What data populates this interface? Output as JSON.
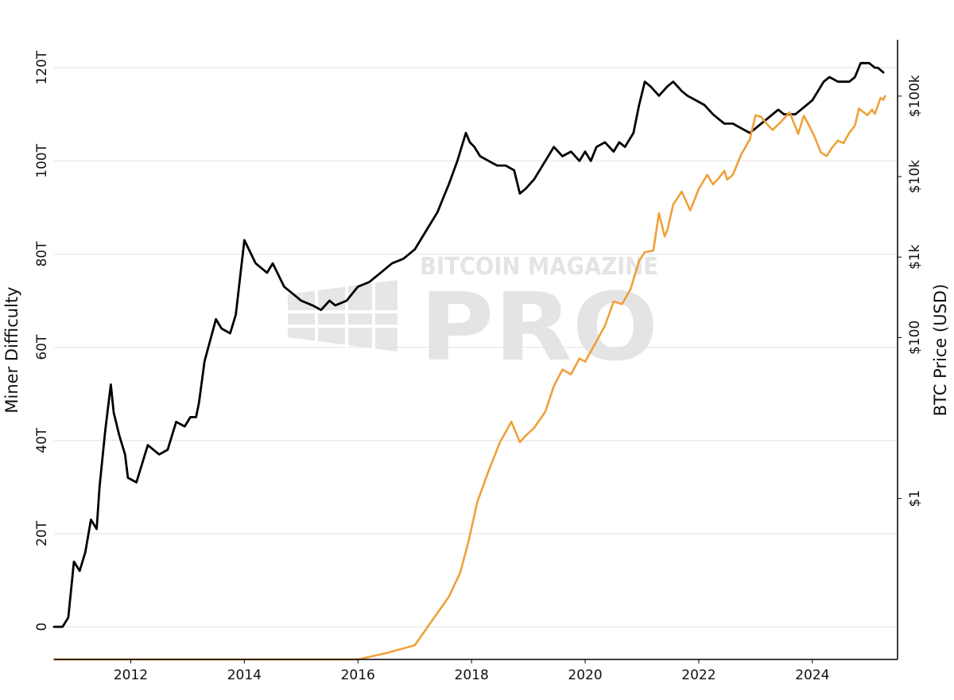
{
  "chart_data": {
    "type": "line",
    "title": "",
    "xlabel": "",
    "ylabel": "Miner Difficulty",
    "y2label": "BTC Price (USD)",
    "xlim": [
      2010.65,
      2025.5
    ],
    "ylim": [
      -7,
      126
    ],
    "y2scale": "log",
    "y2lim_log10": [
      -2.0,
      5.7
    ],
    "x_ticks": [
      {
        "value": 2012,
        "label": "2012"
      },
      {
        "value": 2014,
        "label": "2014"
      },
      {
        "value": 2016,
        "label": "2016"
      },
      {
        "value": 2018,
        "label": "2018"
      },
      {
        "value": 2020,
        "label": "2020"
      },
      {
        "value": 2022,
        "label": "2022"
      },
      {
        "value": 2024,
        "label": "2024"
      }
    ],
    "y_ticks": [
      {
        "value": 0,
        "label": "0"
      },
      {
        "value": 20,
        "label": "20T"
      },
      {
        "value": 40,
        "label": "40T"
      },
      {
        "value": 60,
        "label": "60T"
      },
      {
        "value": 80,
        "label": "80T"
      },
      {
        "value": 100,
        "label": "100T"
      },
      {
        "value": 120,
        "label": "120T"
      }
    ],
    "y2_ticks": [
      {
        "value": 1,
        "label": "$1"
      },
      {
        "value": 100,
        "label": "$100"
      },
      {
        "value": 1000,
        "label": "$1k"
      },
      {
        "value": 10000,
        "label": "$10k"
      },
      {
        "value": 100000,
        "label": "$100k"
      }
    ],
    "grid": true,
    "series": [
      {
        "name": "Miner Difficulty",
        "axis": "left",
        "unit": "T",
        "color": "#000000",
        "x": [
          2010.65,
          2010.8,
          2010.9,
          2011.0,
          2011.1,
          2011.2,
          2011.3,
          2011.4,
          2011.45,
          2011.55,
          2011.65,
          2011.7,
          2011.8,
          2011.9,
          2011.95,
          2012.1,
          2012.3,
          2012.5,
          2012.65,
          2012.8,
          2012.95,
          2013.05,
          2013.15,
          2013.2,
          2013.3,
          2013.5,
          2013.6,
          2013.75,
          2013.85,
          2014.0,
          2014.2,
          2014.4,
          2014.5,
          2014.7,
          2014.9,
          2015.0,
          2015.2,
          2015.35,
          2015.5,
          2015.6,
          2015.8,
          2016.0,
          2016.2,
          2016.4,
          2016.6,
          2016.8,
          2017.0,
          2017.2,
          2017.4,
          2017.5,
          2017.6,
          2017.75,
          2017.9,
          2017.97,
          2018.05,
          2018.15,
          2018.3,
          2018.45,
          2018.6,
          2018.75,
          2018.85,
          2018.95,
          2019.1,
          2019.3,
          2019.45,
          2019.6,
          2019.75,
          2019.9,
          2020.0,
          2020.1,
          2020.2,
          2020.35,
          2020.5,
          2020.6,
          2020.7,
          2020.85,
          2020.95,
          2021.05,
          2021.15,
          2021.3,
          2021.45,
          2021.55,
          2021.7,
          2021.8,
          2021.95,
          2022.1,
          2022.25,
          2022.35,
          2022.45,
          2022.6,
          2022.75,
          2022.9,
          2023.0,
          2023.1,
          2023.2,
          2023.3,
          2023.4,
          2023.5,
          2023.6,
          2023.7,
          2023.8,
          2023.9,
          2024.0,
          2024.1,
          2024.2,
          2024.3,
          2024.45,
          2024.55,
          2024.65,
          2024.75,
          2024.85,
          2024.9,
          2025.0,
          2025.1,
          2025.15,
          2025.25
        ],
        "values": [
          0.0,
          0.0,
          2.0,
          14.0,
          12.0,
          16.0,
          23.0,
          21.0,
          30.0,
          42.0,
          52.0,
          46.0,
          41.0,
          37.0,
          32.0,
          31.0,
          39.0,
          37.0,
          38.0,
          44.0,
          43.0,
          45.0,
          45.0,
          48.0,
          57.0,
          66.0,
          64.0,
          63.0,
          67.0,
          83.0,
          78.0,
          76.0,
          78.0,
          73.0,
          71.0,
          70.0,
          69.0,
          68.0,
          70.0,
          69.0,
          70.0,
          73.0,
          74.0,
          76.0,
          78.0,
          79.0,
          81.0,
          85.0,
          89.0,
          92.0,
          95.0,
          100.0,
          106.0,
          104.0,
          103.0,
          101.0,
          100.0,
          99.0,
          99.0,
          98.0,
          93.0,
          94.0,
          96.0,
          100.0,
          103.0,
          101.0,
          102.0,
          100.0,
          102.0,
          100.0,
          103.0,
          104.0,
          102.0,
          104.0,
          103.0,
          106.0,
          112.0,
          117.0,
          116.0,
          114.0,
          116.0,
          117.0,
          115.0,
          114.0,
          113.0,
          112.0,
          110.0,
          109.0,
          108.0,
          108.0,
          107.0,
          106.0,
          107.0,
          108.0,
          109.0,
          110.0,
          111.0,
          110.0,
          110.0,
          110.0,
          111.0,
          112.0,
          113.0,
          115.0,
          117.0,
          118.0,
          117.0,
          117.0,
          117.0,
          118.0,
          121.0,
          121.0,
          121.0,
          120.0,
          120.0,
          119.0
        ]
      },
      {
        "name": "BTC Price",
        "axis": "right",
        "unit": "USD",
        "color": "#f0a03a",
        "x": [
          2010.65,
          2012.0,
          2014.0,
          2016.0,
          2016.5,
          2017.0,
          2017.3,
          2017.6,
          2017.8,
          2017.95,
          2018.1,
          2018.3,
          2018.5,
          2018.7,
          2018.85,
          2018.95,
          2019.1,
          2019.3,
          2019.45,
          2019.6,
          2019.75,
          2019.9,
          2020.0,
          2020.2,
          2020.35,
          2020.5,
          2020.65,
          2020.8,
          2020.95,
          2021.05,
          2021.2,
          2021.3,
          2021.4,
          2021.45,
          2021.55,
          2021.7,
          2021.85,
          2022.0,
          2022.15,
          2022.25,
          2022.35,
          2022.45,
          2022.5,
          2022.6,
          2022.75,
          2022.9,
          2023.0,
          2023.1,
          2023.2,
          2023.3,
          2023.45,
          2023.6,
          2023.75,
          2023.85,
          2023.95,
          2024.05,
          2024.15,
          2024.25,
          2024.35,
          2024.45,
          2024.55,
          2024.65,
          2024.75,
          2024.82,
          2024.9,
          2024.97,
          2025.05,
          2025.1,
          2025.2,
          2025.25,
          2025.28
        ],
        "values": [
          0.01,
          0.01,
          0.01,
          0.01,
          0.012,
          0.015,
          0.03,
          0.06,
          0.12,
          0.3,
          0.9,
          2.2,
          5.0,
          9.0,
          5.0,
          6.0,
          7.5,
          12.0,
          25.0,
          40.0,
          35.0,
          55.0,
          50.0,
          90.0,
          140.0,
          280.0,
          260.0,
          400.0,
          900.0,
          1150.0,
          1200.0,
          3500.0,
          1800.0,
          2200.0,
          4500.0,
          6500.0,
          3800.0,
          7000.0,
          10500.0,
          8000.0,
          9500.0,
          11800.0,
          9200.0,
          10500.0,
          19000.0,
          29000.0,
          58000.0,
          55000.0,
          45000.0,
          38000.0,
          48000.0,
          63000.0,
          34000.0,
          57000.0,
          42000.0,
          30000.0,
          20000.0,
          18000.0,
          23000.0,
          28000.0,
          26000.0,
          35000.0,
          43000.0,
          70000.0,
          63000.0,
          58000.0,
          68000.0,
          60000.0,
          95000.0,
          90000.0,
          100000.0
        ]
      }
    ]
  }
}
